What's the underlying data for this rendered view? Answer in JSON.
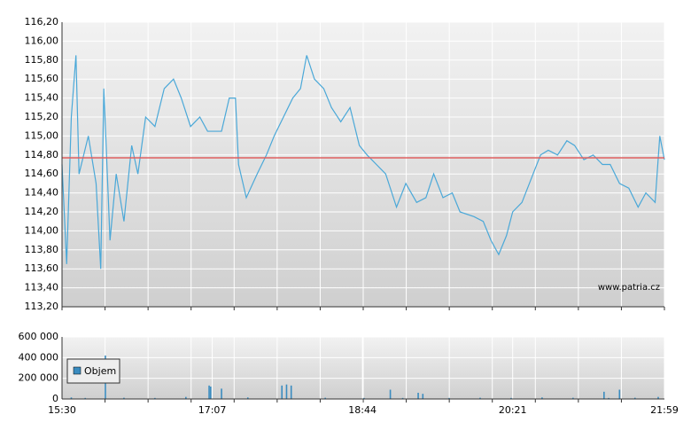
{
  "chart_data": [
    {
      "type": "line",
      "watermark": "www.patria.cz",
      "x": [
        "15:30",
        "15:33",
        "15:36",
        "15:39",
        "15:41",
        "15:47",
        "15:52",
        "15:55",
        "15:57",
        "16:01",
        "16:05",
        "16:10",
        "16:15",
        "16:19",
        "16:24",
        "16:30",
        "16:36",
        "16:42",
        "16:47",
        "16:53",
        "16:59",
        "17:04",
        "17:13",
        "17:18",
        "17:22",
        "17:24",
        "17:29",
        "17:36",
        "17:42",
        "17:47",
        "17:53",
        "17:59",
        "18:04",
        "18:08",
        "18:13",
        "18:19",
        "18:24",
        "18:30",
        "18:36",
        "18:42",
        "18:47",
        "18:53",
        "18:59",
        "19:06",
        "19:12",
        "19:19",
        "19:25",
        "19:30",
        "19:36",
        "19:42",
        "19:47",
        "19:56",
        "20:02",
        "20:07",
        "20:12",
        "20:17",
        "20:21",
        "20:27",
        "20:33",
        "20:39",
        "20:44",
        "20:50",
        "20:56",
        "21:01",
        "21:07",
        "21:13",
        "21:19",
        "21:24",
        "21:30",
        "21:36",
        "21:42",
        "21:47",
        "21:53",
        "21:56",
        "21:59"
      ],
      "series": [
        {
          "color": "#4aa8d8",
          "values": [
            114.7,
            113.65,
            115.2,
            115.85,
            114.6,
            115.0,
            114.5,
            113.6,
            115.5,
            113.9,
            114.6,
            114.1,
            114.9,
            114.6,
            115.2,
            115.1,
            115.5,
            115.6,
            115.4,
            115.1,
            115.2,
            115.05,
            115.05,
            115.4,
            115.4,
            114.7,
            114.35,
            114.6,
            114.8,
            115.0,
            115.2,
            115.4,
            115.5,
            115.85,
            115.6,
            115.5,
            115.3,
            115.15,
            115.3,
            114.9,
            114.8,
            114.7,
            114.6,
            114.25,
            114.5,
            114.3,
            114.35,
            114.6,
            114.35,
            114.4,
            114.2,
            114.15,
            114.1,
            113.9,
            113.75,
            113.95,
            114.2,
            114.3,
            114.55,
            114.8,
            114.85,
            114.8,
            114.95,
            114.9,
            114.75,
            114.8,
            114.7,
            114.7,
            114.5,
            114.45,
            114.25,
            114.4,
            114.3,
            115.0,
            114.75
          ]
        }
      ],
      "reference_line": 114.77,
      "reference_color": "#e06060",
      "xlim": [
        "15:30",
        "21:59"
      ],
      "ylim": [
        113.2,
        116.2
      ],
      "yticks": [
        {
          "value": 113.2,
          "label": "113,20"
        },
        {
          "value": 113.4,
          "label": "113,40"
        },
        {
          "value": 113.6,
          "label": "113,60"
        },
        {
          "value": 113.8,
          "label": "113,80"
        },
        {
          "value": 114.0,
          "label": "114,00"
        },
        {
          "value": 114.2,
          "label": "114,20"
        },
        {
          "value": 114.4,
          "label": "114,40"
        },
        {
          "value": 114.6,
          "label": "114,60"
        },
        {
          "value": 114.8,
          "label": "114,80"
        },
        {
          "value": 115.0,
          "label": "115,00"
        },
        {
          "value": 115.2,
          "label": "115,20"
        },
        {
          "value": 115.4,
          "label": "115,40"
        },
        {
          "value": 115.6,
          "label": "115,60"
        },
        {
          "value": 115.8,
          "label": "115,80"
        },
        {
          "value": 116.0,
          "label": "116,00"
        },
        {
          "value": 116.2,
          "label": "116,20"
        }
      ],
      "grid": true
    },
    {
      "type": "bar",
      "x": [
        "15:36",
        "15:45",
        "15:58",
        "16:10",
        "16:30",
        "16:50",
        "17:05",
        "17:06",
        "17:13",
        "17:30",
        "17:52",
        "17:55",
        "17:58",
        "18:20",
        "18:45",
        "19:02",
        "19:10",
        "19:20",
        "19:23",
        "19:40",
        "20:00",
        "20:20",
        "20:40",
        "21:00",
        "21:20",
        "21:23",
        "21:30",
        "21:40",
        "21:55"
      ],
      "series": [
        {
          "name": "Objem",
          "color": "#3a8cc0",
          "values": [
            15000,
            10000,
            420000,
            12000,
            10000,
            20000,
            130000,
            120000,
            100000,
            15000,
            130000,
            140000,
            130000,
            12000,
            10000,
            90000,
            10000,
            60000,
            50000,
            10000,
            12000,
            10000,
            15000,
            12000,
            70000,
            10000,
            90000,
            12000,
            20000
          ]
        }
      ],
      "xlim": [
        "15:30",
        "21:59"
      ],
      "xticks": [
        "15:30",
        "17:07",
        "18:44",
        "20:21",
        "21:59"
      ],
      "ylim": [
        0,
        600000
      ],
      "yticks": [
        0,
        {
          "value": 200000,
          "label": "200 000"
        },
        {
          "value": 400000,
          "label": "400 000"
        },
        {
          "value": 600000,
          "label": "600 000"
        }
      ],
      "grid": true
    }
  ]
}
